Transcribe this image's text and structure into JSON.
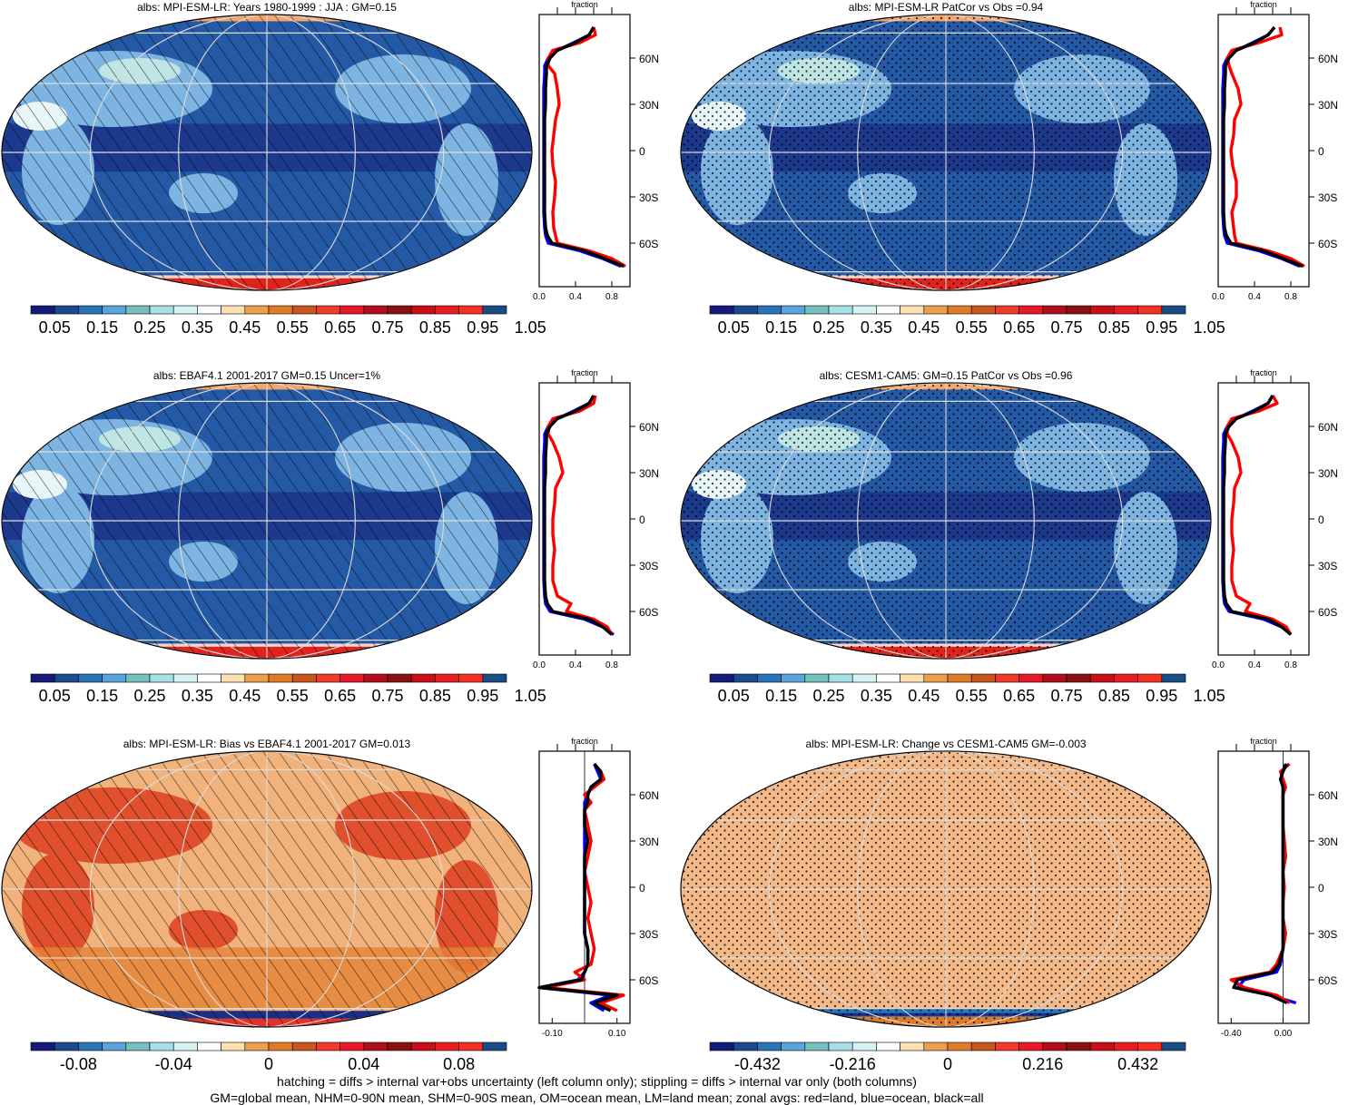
{
  "chart_data": [
    {
      "type": "heatmap",
      "title": "albs: MPI-ESM-LR: Years 1980-1999 : JJA : GM=0.15",
      "overlay": "hatching",
      "colorbar": {
        "labels": [
          "0.05",
          "0.15",
          "0.25",
          "0.35",
          "0.45",
          "0.55",
          "0.65",
          "0.75",
          "0.85",
          "0.95",
          "1.05"
        ],
        "palette": "albedo"
      },
      "zonal": {
        "title": "fraction",
        "x_ticks": [
          "0.0",
          "0.4",
          "0.8"
        ],
        "xlim": [
          0,
          1.0
        ],
        "lat": [
          -80,
          -75,
          -70,
          -65,
          -60,
          -55,
          -50,
          -40,
          -30,
          -20,
          -10,
          0,
          10,
          20,
          30,
          40,
          50,
          55,
          60,
          65,
          70,
          75,
          80
        ],
        "land": [
          null,
          0.95,
          0.8,
          0.55,
          0.2,
          0.18,
          0.16,
          0.15,
          0.17,
          0.18,
          0.15,
          0.14,
          0.16,
          0.18,
          0.22,
          0.2,
          0.17,
          0.1,
          0.1,
          0.15,
          0.45,
          0.62,
          0.6
        ],
        "ocean": [
          null,
          0.9,
          0.7,
          0.45,
          0.1,
          0.07,
          0.06,
          0.05,
          0.05,
          0.05,
          0.05,
          0.05,
          0.05,
          0.05,
          0.05,
          0.05,
          0.06,
          0.06,
          0.1,
          0.2,
          0.38,
          0.55,
          0.6
        ],
        "all": [
          null,
          0.93,
          0.72,
          0.5,
          0.14,
          0.09,
          0.07,
          0.06,
          0.06,
          0.06,
          0.06,
          0.06,
          0.06,
          0.06,
          0.07,
          0.07,
          0.08,
          0.08,
          0.12,
          0.2,
          0.4,
          0.55,
          0.6
        ]
      }
    },
    {
      "type": "heatmap",
      "title": "albs: MPI-ESM-LR PatCor vs Obs =0.94",
      "overlay": "stipple",
      "colorbar": {
        "labels": [
          "0.05",
          "0.15",
          "0.25",
          "0.35",
          "0.45",
          "0.55",
          "0.65",
          "0.75",
          "0.85",
          "0.95",
          "1.05"
        ],
        "palette": "albedo"
      },
      "zonal": {
        "title": "fraction",
        "x_ticks": [
          "0.0",
          "0.4",
          "0.8"
        ],
        "xlim": [
          0,
          1.0
        ],
        "lat": [
          -80,
          -75,
          -70,
          -65,
          -60,
          -55,
          -50,
          -40,
          -30,
          -20,
          -10,
          0,
          10,
          20,
          30,
          40,
          50,
          55,
          60,
          65,
          70,
          75,
          80
        ],
        "land": [
          null,
          0.95,
          0.8,
          0.55,
          0.2,
          0.18,
          0.17,
          0.15,
          0.2,
          0.2,
          0.16,
          0.14,
          0.17,
          0.18,
          0.25,
          0.22,
          0.15,
          0.12,
          0.1,
          0.15,
          0.45,
          0.7,
          0.68
        ],
        "ocean": [
          null,
          0.9,
          0.7,
          0.45,
          0.1,
          0.07,
          0.06,
          0.05,
          0.05,
          0.05,
          0.05,
          0.05,
          0.05,
          0.05,
          0.05,
          0.05,
          0.06,
          0.06,
          0.1,
          0.2,
          0.38,
          0.55,
          0.62
        ],
        "all": [
          null,
          0.93,
          0.72,
          0.5,
          0.14,
          0.09,
          0.07,
          0.06,
          0.06,
          0.06,
          0.06,
          0.06,
          0.06,
          0.06,
          0.07,
          0.07,
          0.08,
          0.08,
          0.12,
          0.2,
          0.4,
          0.55,
          0.62
        ]
      }
    },
    {
      "type": "heatmap",
      "title": "albs: EBAF4.1 2001-2017 GM=0.15 Uncer=1%",
      "overlay": "hatching",
      "colorbar": {
        "labels": [
          "0.05",
          "0.15",
          "0.25",
          "0.35",
          "0.45",
          "0.55",
          "0.65",
          "0.75",
          "0.85",
          "0.95",
          "1.05"
        ],
        "palette": "albedo"
      },
      "zonal": {
        "title": "fraction",
        "x_ticks": [
          "0.0",
          "0.4",
          "0.8"
        ],
        "xlim": [
          0,
          1.0
        ],
        "lat": [
          -80,
          -75,
          -70,
          -65,
          -60,
          -55,
          -50,
          -40,
          -30,
          -20,
          -10,
          0,
          10,
          20,
          30,
          40,
          50,
          55,
          60,
          65,
          70,
          75,
          80
        ],
        "land": [
          null,
          0.8,
          0.75,
          0.6,
          0.3,
          0.35,
          0.2,
          0.15,
          0.15,
          0.17,
          0.15,
          0.15,
          0.17,
          0.18,
          0.26,
          0.22,
          0.15,
          0.1,
          0.1,
          0.15,
          0.45,
          0.6,
          0.62
        ],
        "ocean": [
          null,
          0.82,
          0.7,
          0.5,
          0.12,
          0.07,
          0.06,
          0.05,
          0.05,
          0.05,
          0.05,
          0.05,
          0.05,
          0.05,
          0.05,
          0.05,
          0.06,
          0.06,
          0.1,
          0.2,
          0.38,
          0.55,
          0.6
        ],
        "all": [
          null,
          0.8,
          0.7,
          0.55,
          0.15,
          0.09,
          0.07,
          0.06,
          0.06,
          0.06,
          0.06,
          0.06,
          0.06,
          0.06,
          0.07,
          0.07,
          0.08,
          0.08,
          0.12,
          0.2,
          0.4,
          0.55,
          0.6
        ]
      }
    },
    {
      "type": "heatmap",
      "title": "albs: CESM1-CAM5: GM=0.15 PatCor vs Obs =0.96",
      "overlay": "stipple",
      "colorbar": {
        "labels": [
          "0.05",
          "0.15",
          "0.25",
          "0.35",
          "0.45",
          "0.55",
          "0.65",
          "0.75",
          "0.85",
          "0.95",
          "1.05"
        ],
        "palette": "albedo"
      },
      "zonal": {
        "title": "fraction",
        "x_ticks": [
          "0.0",
          "0.4",
          "0.8"
        ],
        "xlim": [
          0,
          1.0
        ],
        "lat": [
          -80,
          -75,
          -70,
          -65,
          -60,
          -55,
          -50,
          -40,
          -30,
          -20,
          -10,
          0,
          10,
          20,
          30,
          40,
          50,
          55,
          60,
          65,
          70,
          75,
          80
        ],
        "land": [
          null,
          0.8,
          0.75,
          0.6,
          0.3,
          0.35,
          0.2,
          0.15,
          0.15,
          0.17,
          0.15,
          0.15,
          0.17,
          0.18,
          0.25,
          0.22,
          0.15,
          0.1,
          0.1,
          0.15,
          0.45,
          0.65,
          0.6
        ],
        "ocean": [
          null,
          0.8,
          0.7,
          0.5,
          0.12,
          0.07,
          0.06,
          0.05,
          0.05,
          0.05,
          0.05,
          0.05,
          0.05,
          0.05,
          0.05,
          0.05,
          0.06,
          0.06,
          0.1,
          0.2,
          0.38,
          0.55,
          0.6
        ],
        "all": [
          null,
          0.8,
          0.7,
          0.55,
          0.15,
          0.09,
          0.07,
          0.06,
          0.06,
          0.06,
          0.06,
          0.06,
          0.06,
          0.06,
          0.07,
          0.07,
          0.08,
          0.08,
          0.12,
          0.2,
          0.4,
          0.55,
          0.6
        ]
      }
    },
    {
      "type": "heatmap",
      "title": "albs: MPI-ESM-LR: Bias vs EBAF4.1 2001-2017 GM=0.013",
      "overlay": "hatching",
      "colorbar": {
        "labels": [
          "-0.08",
          "-0.04",
          "0",
          "0.04",
          "0.08"
        ],
        "palette": "bias"
      },
      "zonal": {
        "title": "fraction",
        "x_ticks": [
          "-0.10",
          "0.10"
        ],
        "xlim": [
          -0.14,
          0.14
        ],
        "lat": [
          -80,
          -75,
          -70,
          -65,
          -60,
          -55,
          -50,
          -40,
          -30,
          -20,
          -10,
          0,
          10,
          20,
          30,
          40,
          50,
          55,
          60,
          65,
          70,
          75,
          80
        ],
        "land": [
          0.1,
          0.05,
          0.12,
          -0.12,
          0.0,
          -0.03,
          0.02,
          0.03,
          0.02,
          0.01,
          0.02,
          0.01,
          0.0,
          0.01,
          0.02,
          0.01,
          0.0,
          0.02,
          0.0,
          0.03,
          0.06,
          0.05,
          0.03
        ],
        "ocean": [
          0.06,
          0.02,
          0.08,
          -0.14,
          -0.02,
          0.0,
          0.01,
          0.01,
          0.0,
          0.0,
          0.0,
          0.0,
          0.0,
          0.0,
          0.0,
          0.0,
          0.0,
          0.0,
          0.01,
          0.02,
          0.05,
          0.04,
          0.03
        ],
        "all": [
          0.08,
          0.03,
          0.1,
          -0.14,
          -0.01,
          0.0,
          0.01,
          0.01,
          0.0,
          0.0,
          0.0,
          0.0,
          0.0,
          0.0,
          0.01,
          0.0,
          0.0,
          0.01,
          0.01,
          0.02,
          0.05,
          0.05,
          0.03
        ]
      }
    },
    {
      "type": "heatmap",
      "title": "albs: MPI-ESM-LR: Change vs CESM1-CAM5 GM=-0.003",
      "overlay": "stipple",
      "colorbar": {
        "labels": [
          "-0.432",
          "-0.216",
          "0",
          "0.216",
          "0.432"
        ],
        "palette": "bias"
      },
      "zonal": {
        "title": "fraction",
        "x_ticks": [
          "-0.40",
          "0.00"
        ],
        "xlim": [
          -0.5,
          0.2
        ],
        "lat": [
          -80,
          -75,
          -70,
          -65,
          -60,
          -55,
          -50,
          -40,
          -30,
          -20,
          -10,
          0,
          10,
          20,
          30,
          40,
          50,
          55,
          60,
          65,
          70,
          75,
          80
        ],
        "land": [
          null,
          0.05,
          -0.05,
          -0.3,
          -0.4,
          -0.1,
          -0.05,
          0.0,
          0.02,
          0.0,
          0.0,
          0.01,
          0.0,
          0.02,
          0.01,
          0.0,
          0.0,
          0.0,
          0.0,
          0.02,
          0.0,
          -0.02,
          0.05
        ],
        "ocean": [
          null,
          0.1,
          -0.1,
          -0.35,
          -0.3,
          -0.05,
          -0.02,
          0.0,
          0.0,
          0.0,
          0.0,
          0.0,
          0.0,
          0.0,
          0.0,
          0.0,
          0.0,
          0.0,
          0.0,
          0.0,
          -0.02,
          0.0,
          0.02
        ],
        "all": [
          null,
          0.03,
          -0.1,
          -0.38,
          -0.35,
          -0.08,
          -0.03,
          0.0,
          0.0,
          0.0,
          0.0,
          0.0,
          0.0,
          0.0,
          0.0,
          0.0,
          0.0,
          0.0,
          0.0,
          0.0,
          -0.02,
          0.0,
          0.03
        ]
      }
    }
  ],
  "lat_labels": [
    "60N",
    "30N",
    "0",
    "30S",
    "60S"
  ],
  "palettes": {
    "albedo": [
      "#151b7a",
      "#1c4a8f",
      "#2a74b8",
      "#5aa4dc",
      "#75bfbd",
      "#a6dfe6",
      "#d6f2f2",
      "#ffffff",
      "#fce0b0",
      "#eb9f4e",
      "#e07b2a",
      "#c9561c",
      "#ef3a2c",
      "#e6182a",
      "#b00e1a",
      "#8c0f12",
      "#c80f18",
      "#e81c22",
      "#f23024",
      "#1a4c86"
    ],
    "bias": [
      "#151b7a",
      "#1c4a8f",
      "#2a74b8",
      "#5aa4dc",
      "#75bfbd",
      "#a6dfe6",
      "#d6f2f2",
      "#ffffff",
      "#fce0b0",
      "#eb9f4e",
      "#e07b2a",
      "#c9561c",
      "#ef3a2c",
      "#e6182a",
      "#b00e1a",
      "#8c0f12",
      "#c80f18",
      "#e81c22",
      "#f23024",
      "#1a4c86"
    ]
  },
  "colors": {
    "land": "#ff0000",
    "ocean": "#0000ff",
    "all": "#000000"
  },
  "footer": {
    "line1": "hatching = diffs > internal var+obs uncertainty (left column only); stippling = diffs > internal var only (both columns)",
    "line2": "GM=global mean, NHM=0-90N mean, SHM=0-90S mean, OM=ocean mean, LM=land mean; zonal avgs: red=land, blue=ocean, black=all"
  }
}
